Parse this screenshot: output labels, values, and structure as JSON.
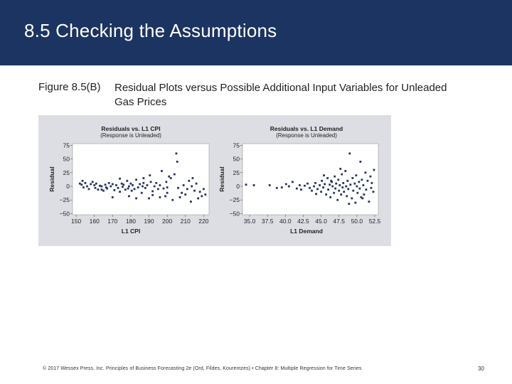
{
  "slide": {
    "title": "8.5 Checking the Assumptions",
    "figure_number": "Figure 8.5(B)",
    "figure_title": "Residual Plots versus Possible Additional Input Variables for Unleaded Gas Prices",
    "footer": "© 2017 Wessex Press, Inc. Principles of Business Forecasting 2e (Ord, Fildes, Kourentzes) • Chapter 8: Multiple Regression for Time Series",
    "page_number": "30"
  },
  "colors": {
    "header_bg": "#1c3461",
    "panel_bg": "#dcdee3",
    "point": "#27325f"
  },
  "chart_data": [
    {
      "type": "scatter",
      "title": "Residuals vs. L1 CPI",
      "subtitle": "(Response is Unleaded)",
      "xlabel": "L1 CPI",
      "ylabel": "Residual",
      "xlim": [
        148,
        223
      ],
      "ylim": [
        -52,
        78
      ],
      "xticks": [
        "150",
        "160",
        "170",
        "180",
        "190",
        "200",
        "210",
        "220"
      ],
      "yticks": [
        "75",
        "50",
        "25",
        "0",
        "−25",
        "−50"
      ],
      "x_tick_values": [
        150,
        160,
        170,
        180,
        190,
        200,
        210,
        220
      ],
      "y_tick_values": [
        75,
        50,
        25,
        0,
        -25,
        -50
      ],
      "grid": false,
      "points": [
        [
          152,
          5
        ],
        [
          153,
          3
        ],
        [
          153.5,
          10
        ],
        [
          154,
          -2
        ],
        [
          155,
          6
        ],
        [
          156,
          0
        ],
        [
          157,
          -5
        ],
        [
          158,
          4
        ],
        [
          159,
          8
        ],
        [
          160,
          2
        ],
        [
          160.5,
          -3
        ],
        [
          161,
          5
        ],
        [
          162,
          -6
        ],
        [
          163,
          1
        ],
        [
          164,
          0
        ],
        [
          165,
          -8
        ],
        [
          166,
          3
        ],
        [
          166.5,
          -2
        ],
        [
          167,
          -4
        ],
        [
          168,
          6
        ],
        [
          169,
          0
        ],
        [
          170,
          4
        ],
        [
          171,
          -7
        ],
        [
          172,
          2
        ],
        [
          173,
          -3
        ],
        [
          174,
          -10
        ],
        [
          175,
          5
        ],
        [
          175.5,
          -1
        ],
        [
          176,
          3
        ],
        [
          177,
          -6
        ],
        [
          178,
          10
        ],
        [
          178.5,
          -4
        ],
        [
          179,
          0
        ],
        [
          180,
          5
        ],
        [
          180.5,
          -8
        ],
        [
          181,
          2
        ],
        [
          182,
          -5
        ],
        [
          183,
          12
        ],
        [
          184,
          -2
        ],
        [
          185,
          4
        ],
        [
          186,
          -12
        ],
        [
          186.5,
          0
        ],
        [
          187,
          6
        ],
        [
          188,
          -3
        ],
        [
          189,
          2
        ],
        [
          190,
          -22
        ],
        [
          190.5,
          20
        ],
        [
          191,
          8
        ],
        [
          192,
          -9
        ],
        [
          193,
          0
        ],
        [
          194,
          6
        ],
        [
          195,
          -5
        ],
        [
          196,
          2
        ],
        [
          197,
          28
        ],
        [
          198,
          -4
        ],
        [
          199,
          -18
        ],
        [
          199.5,
          8
        ],
        [
          200,
          -12
        ],
        [
          201,
          18
        ],
        [
          202,
          15
        ],
        [
          203,
          -25
        ],
        [
          204,
          22
        ],
        [
          205,
          60
        ],
        [
          205.5,
          45
        ],
        [
          206,
          -3
        ],
        [
          207,
          -20
        ],
        [
          208,
          -12
        ],
        [
          209,
          2
        ],
        [
          210,
          -15
        ],
        [
          211,
          -5
        ],
        [
          212,
          10
        ],
        [
          213,
          -28
        ],
        [
          213.5,
          0
        ],
        [
          214,
          15
        ],
        [
          215,
          -8
        ],
        [
          216,
          5
        ],
        [
          217,
          -22
        ],
        [
          218,
          -10
        ],
        [
          219,
          -18
        ],
        [
          220,
          -5
        ],
        [
          221,
          -15
        ],
        [
          179,
          -18
        ],
        [
          183,
          -22
        ],
        [
          196,
          -20
        ],
        [
          200,
          -2
        ],
        [
          187,
          15
        ],
        [
          170,
          -20
        ],
        [
          174,
          14
        ],
        [
          192,
          -16
        ],
        [
          164,
          -6
        ]
      ]
    },
    {
      "type": "scatter",
      "title": "Residuals vs. L1 Demand",
      "subtitle": "(Response is Unleaded)",
      "xlabel": "L1 Demand",
      "ylabel": "Residual",
      "xlim": [
        34,
        53
      ],
      "ylim": [
        -52,
        78
      ],
      "xticks": [
        "35.0",
        "37.5",
        "40.0",
        "42.5",
        "45.0",
        "47.5",
        "50.0",
        "52.5"
      ],
      "yticks": [
        "75",
        "50",
        "25",
        "0",
        "−25",
        "−50"
      ],
      "x_tick_values": [
        35,
        37.5,
        40,
        42.5,
        45,
        47.5,
        50,
        52.5
      ],
      "y_tick_values": [
        75,
        50,
        25,
        0,
        -25,
        -50
      ],
      "grid": false,
      "points": [
        [
          34.5,
          3
        ],
        [
          35.6,
          2
        ],
        [
          37.8,
          2
        ],
        [
          38.8,
          -3
        ],
        [
          39.5,
          -2
        ],
        [
          40.1,
          4
        ],
        [
          40.5,
          0
        ],
        [
          41.0,
          8
        ],
        [
          41.6,
          -4
        ],
        [
          42.0,
          2
        ],
        [
          42.2,
          -6
        ],
        [
          42.7,
          1
        ],
        [
          43.1,
          5
        ],
        [
          43.4,
          -3
        ],
        [
          43.7,
          -8
        ],
        [
          44.0,
          0
        ],
        [
          44.2,
          6
        ],
        [
          44.5,
          -5
        ],
        [
          44.8,
          2
        ],
        [
          45.0,
          -10
        ],
        [
          45.1,
          10
        ],
        [
          45.3,
          -2
        ],
        [
          45.5,
          4
        ],
        [
          45.7,
          -15
        ],
        [
          45.9,
          15
        ],
        [
          46.0,
          -6
        ],
        [
          46.2,
          3
        ],
        [
          46.3,
          -20
        ],
        [
          46.5,
          8
        ],
        [
          46.6,
          0
        ],
        [
          46.8,
          -12
        ],
        [
          46.9,
          18
        ],
        [
          47.0,
          -4
        ],
        [
          47.1,
          5
        ],
        [
          47.3,
          -25
        ],
        [
          47.4,
          12
        ],
        [
          47.5,
          -8
        ],
        [
          47.6,
          2
        ],
        [
          47.8,
          -15
        ],
        [
          47.9,
          22
        ],
        [
          48.0,
          -2
        ],
        [
          48.1,
          6
        ],
        [
          48.2,
          -10
        ],
        [
          48.4,
          28
        ],
        [
          48.5,
          0
        ],
        [
          48.6,
          -18
        ],
        [
          48.7,
          10
        ],
        [
          48.8,
          -5
        ],
        [
          49.0,
          60
        ],
        [
          49.1,
          3
        ],
        [
          49.3,
          -22
        ],
        [
          49.4,
          15
        ],
        [
          49.5,
          -8
        ],
        [
          49.7,
          5
        ],
        [
          49.8,
          -30
        ],
        [
          49.9,
          20
        ],
        [
          50.0,
          0
        ],
        [
          50.1,
          -12
        ],
        [
          50.3,
          8
        ],
        [
          50.4,
          -4
        ],
        [
          50.5,
          45
        ],
        [
          50.6,
          -20
        ],
        [
          50.7,
          12
        ],
        [
          50.9,
          2
        ],
        [
          51.0,
          -15
        ],
        [
          51.2,
          25
        ],
        [
          51.3,
          -6
        ],
        [
          51.5,
          10
        ],
        [
          51.7,
          -28
        ],
        [
          51.9,
          18
        ],
        [
          52.0,
          -3
        ],
        [
          52.1,
          6
        ],
        [
          52.3,
          -10
        ],
        [
          52.4,
          30
        ],
        [
          46.4,
          10
        ],
        [
          45.4,
          20
        ],
        [
          44.3,
          -14
        ],
        [
          47.7,
          32
        ],
        [
          48.9,
          -32
        ],
        [
          50.8,
          -22
        ]
      ]
    }
  ]
}
